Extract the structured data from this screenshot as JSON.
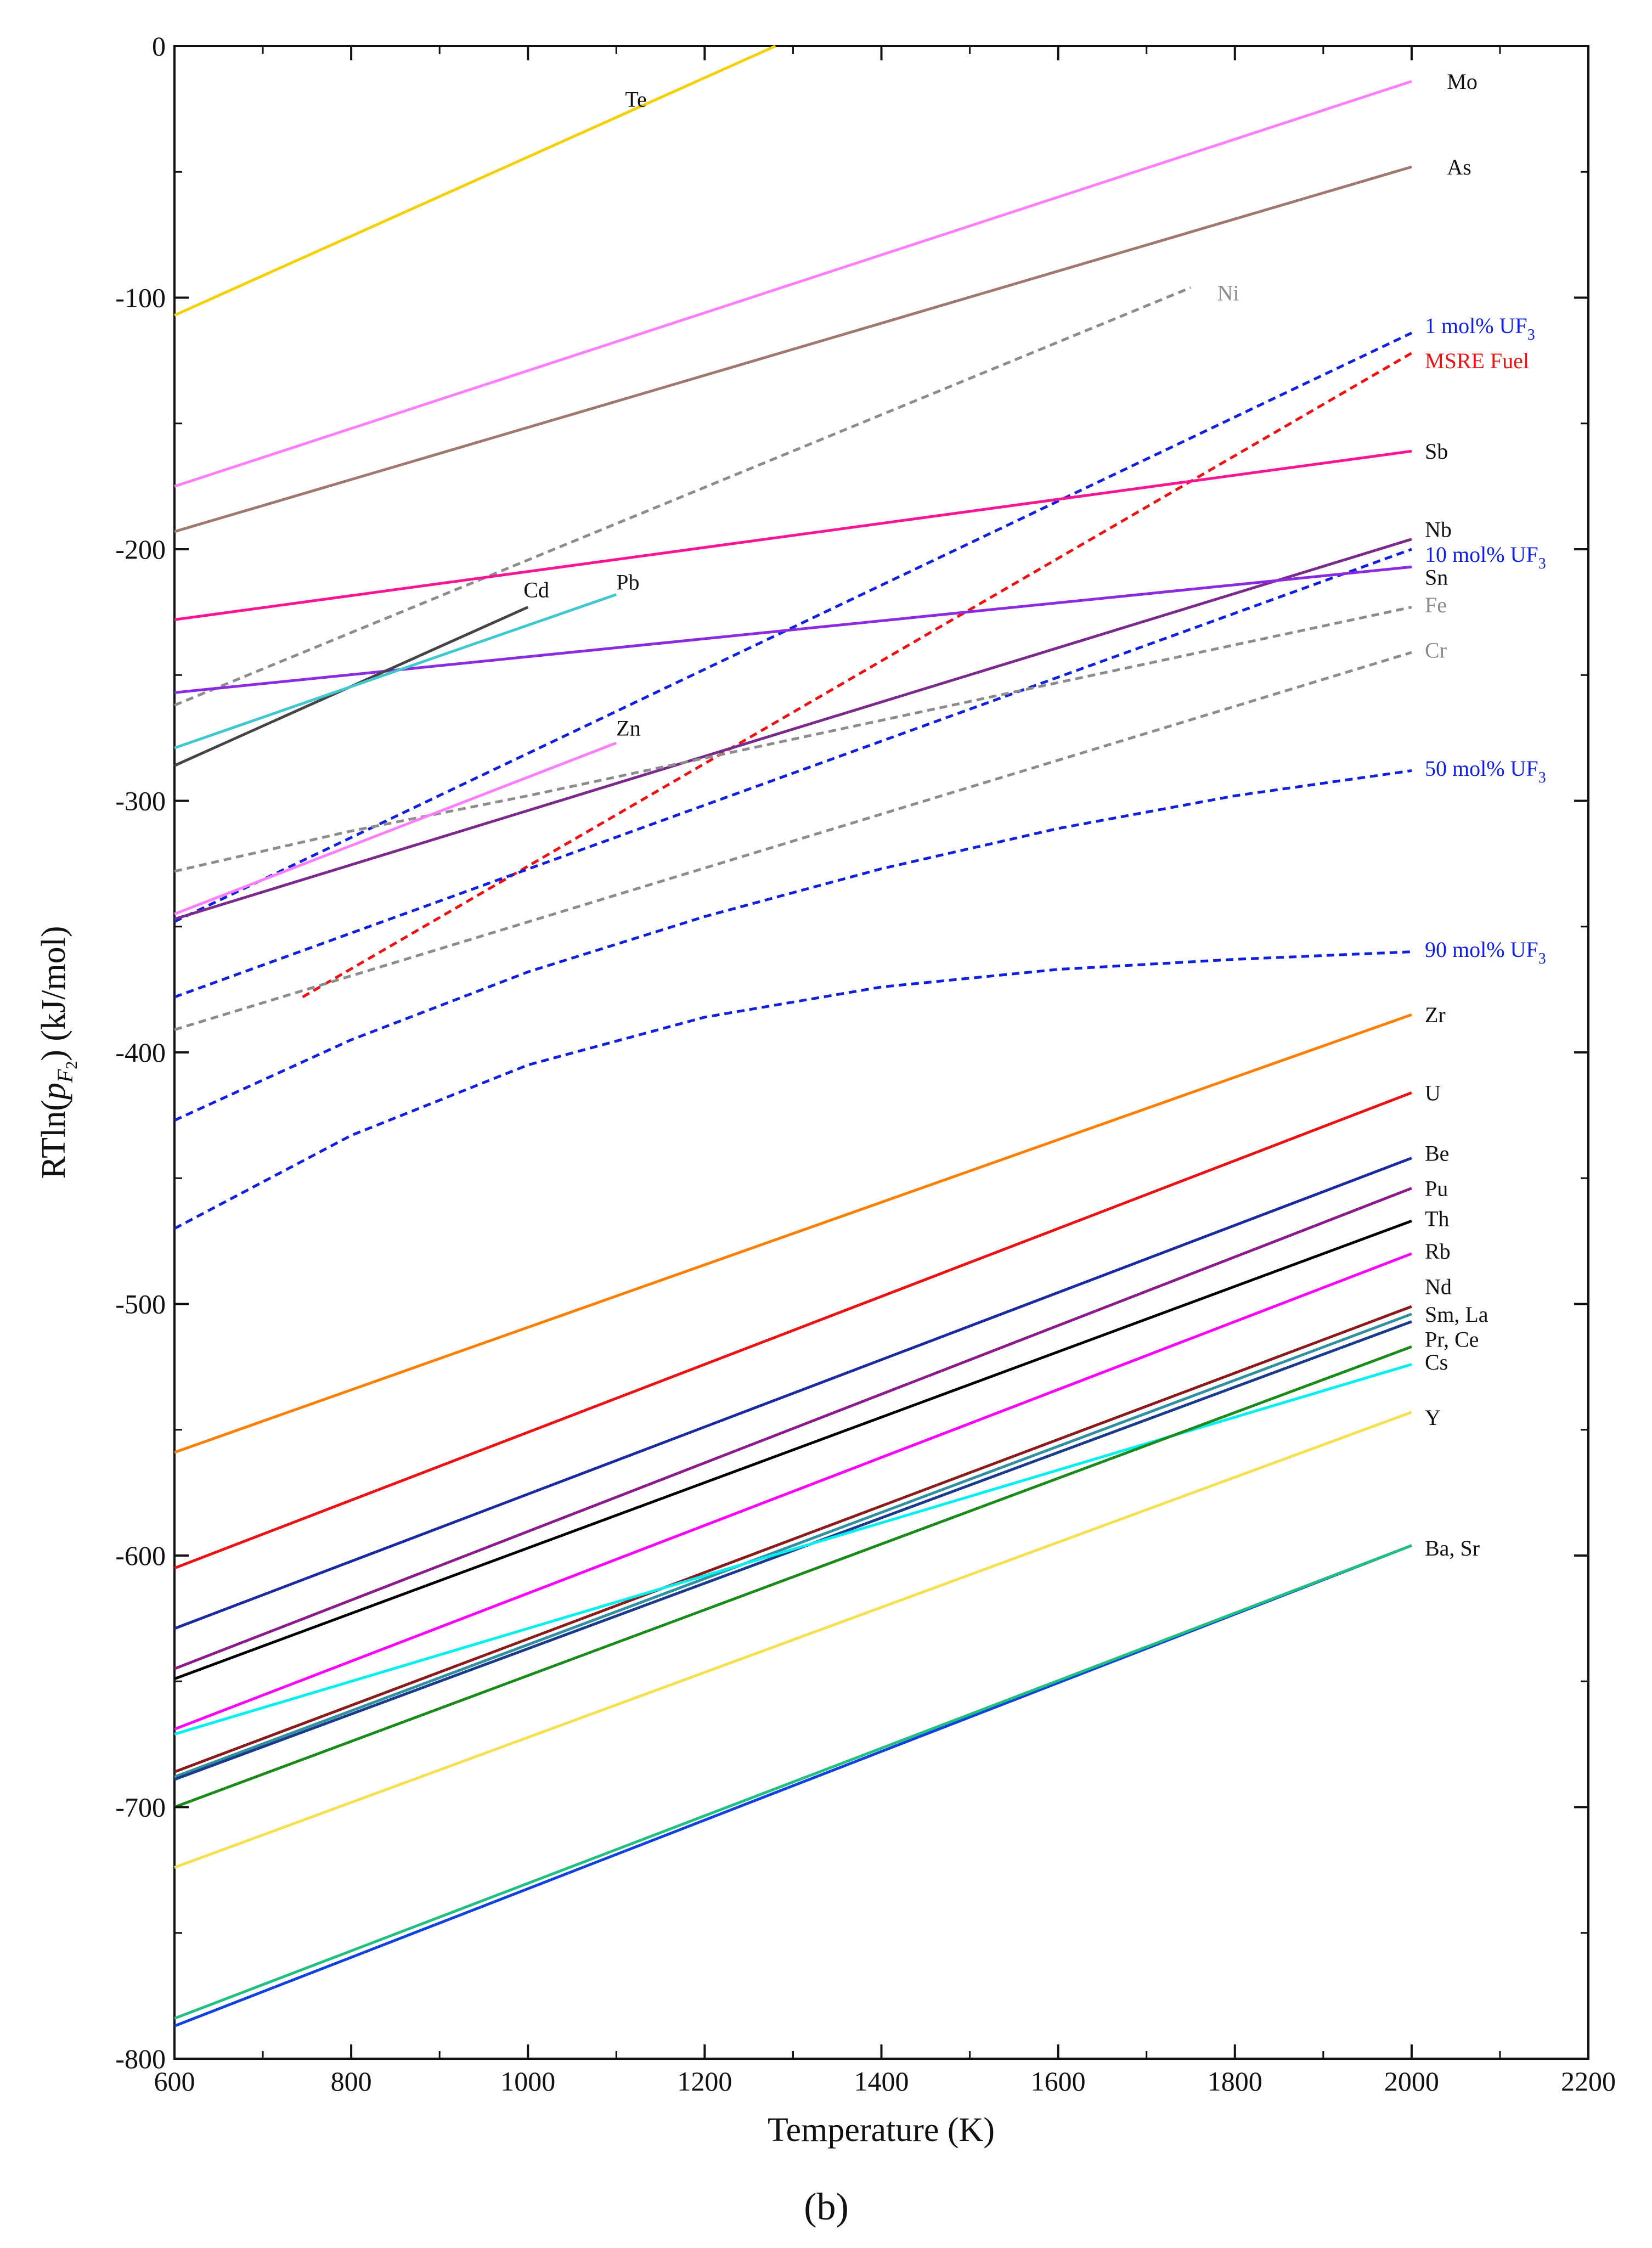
{
  "chart_data": {
    "type": "line",
    "title": "",
    "panel_label": "(b)",
    "xlabel": "Temperature (K)",
    "ylabel": "RTln(p_F2) (kJ/mol)",
    "xlim": [
      600,
      2200
    ],
    "ylim": [
      -800,
      0
    ],
    "xticks": [
      600,
      800,
      1000,
      1200,
      1400,
      1600,
      1800,
      2000,
      2200
    ],
    "yticks": [
      0,
      -100,
      -200,
      -300,
      -400,
      -500,
      -600,
      -700,
      -800
    ],
    "grid": false,
    "series": [
      {
        "name": "Te",
        "label": "Te",
        "color": "#f5d000",
        "dash": false,
        "x": [
          600,
          1280
        ],
        "y": [
          -107,
          0
        ]
      },
      {
        "name": "Mo",
        "label": "Mo",
        "color": "#ff7fff",
        "dash": false,
        "x": [
          600,
          2000
        ],
        "y": [
          -175,
          -14
        ]
      },
      {
        "name": "As",
        "label": "As",
        "color": "#a07870",
        "dash": false,
        "x": [
          600,
          2000
        ],
        "y": [
          -193,
          -48
        ]
      },
      {
        "name": "Ni",
        "label": "Ni",
        "color": "#8c8c8c",
        "dash": true,
        "x": [
          600,
          1750
        ],
        "y": [
          -262,
          -96
        ]
      },
      {
        "name": "1 mol% UF3",
        "label": "1 mol% UF",
        "sub": "3",
        "color": "#1020e0",
        "dash": true,
        "x": [
          600,
          2000
        ],
        "y": [
          -348,
          -114
        ]
      },
      {
        "name": "MSRE Fuel",
        "label": "MSRE Fuel",
        "color": "#ee1111",
        "dash": true,
        "x": [
          745,
          2000
        ],
        "y": [
          -378,
          -122
        ]
      },
      {
        "name": "Sb",
        "label": "Sb",
        "color": "#ff1493",
        "dash": false,
        "x": [
          600,
          2000
        ],
        "y": [
          -228,
          -161
        ]
      },
      {
        "name": "Nb",
        "label": "Nb",
        "color": "#7b2a8c",
        "dash": false,
        "x": [
          600,
          2000
        ],
        "y": [
          -347,
          -196
        ]
      },
      {
        "name": "10 mol% UF3",
        "label": "10 mol% UF",
        "sub": "3",
        "color": "#1020e0",
        "dash": true,
        "x": [
          600,
          2000
        ],
        "y": [
          -378,
          -200
        ]
      },
      {
        "name": "Sn",
        "label": "Sn",
        "color": "#8a2be2",
        "dash": false,
        "x": [
          600,
          2000
        ],
        "y": [
          -257,
          -207
        ]
      },
      {
        "name": "Fe",
        "label": "Fe",
        "color": "#8c8c8c",
        "dash": true,
        "x": [
          600,
          800,
          1000,
          1200,
          1400,
          1600,
          1800,
          2000
        ],
        "y": [
          -328,
          -312,
          -298,
          -283,
          -268,
          -253,
          -238,
          -223
        ]
      },
      {
        "name": "Cr",
        "label": "Cr",
        "color": "#8c8c8c",
        "dash": true,
        "x": [
          600,
          2000
        ],
        "y": [
          -391,
          -241
        ]
      },
      {
        "name": "Cd",
        "label": "Cd",
        "color": "#444444",
        "dash": false,
        "x": [
          600,
          1000
        ],
        "y": [
          -286,
          -223
        ]
      },
      {
        "name": "Pb",
        "label": "Pb",
        "color": "#40c8d0",
        "dash": false,
        "x": [
          600,
          1100
        ],
        "y": [
          -279,
          -218
        ]
      },
      {
        "name": "Zn",
        "label": "Zn",
        "color": "#ff7fff",
        "dash": false,
        "x": [
          600,
          1100
        ],
        "y": [
          -345,
          -277
        ]
      },
      {
        "name": "50 mol% UF3",
        "label": "50 mol% UF",
        "sub": "3",
        "color": "#1020e0",
        "dash": true,
        "x": [
          600,
          800,
          1000,
          1200,
          1400,
          1600,
          1800,
          2000
        ],
        "y": [
          -427,
          -395,
          -368,
          -346,
          -327,
          -311,
          -298,
          -288
        ]
      },
      {
        "name": "90 mol% UF3",
        "label": "90 mol% UF",
        "sub": "3",
        "color": "#1020e0",
        "dash": true,
        "x": [
          600,
          800,
          1000,
          1200,
          1400,
          1600,
          1800,
          2000
        ],
        "y": [
          -470,
          -433,
          -405,
          -386,
          -374,
          -367,
          -363,
          -360
        ]
      },
      {
        "name": "Zr",
        "label": "Zr",
        "color": "#ff8000",
        "dash": false,
        "x": [
          600,
          2000
        ],
        "y": [
          -559,
          -385
        ]
      },
      {
        "name": "U",
        "label": "U",
        "color": "#ee1111",
        "dash": false,
        "x": [
          600,
          2000
        ],
        "y": [
          -605,
          -416
        ]
      },
      {
        "name": "Be",
        "label": "Be",
        "color": "#1a2aa0",
        "dash": false,
        "x": [
          600,
          2000
        ],
        "y": [
          -629,
          -442
        ]
      },
      {
        "name": "Pu",
        "label": "Pu",
        "color": "#8b1a8b",
        "dash": false,
        "x": [
          600,
          2000
        ],
        "y": [
          -645,
          -454
        ]
      },
      {
        "name": "Th",
        "label": "Th",
        "color": "#000000",
        "dash": false,
        "x": [
          600,
          2000
        ],
        "y": [
          -649,
          -467
        ]
      },
      {
        "name": "Rb",
        "label": "Rb",
        "color": "#ff00ff",
        "dash": false,
        "x": [
          600,
          2000
        ],
        "y": [
          -669,
          -480
        ]
      },
      {
        "name": "Nd",
        "label": "Nd",
        "color": "#8b1a1a",
        "dash": false,
        "x": [
          600,
          2000
        ],
        "y": [
          -686,
          -501
        ]
      },
      {
        "name": "Sm, La",
        "label": "Sm, La",
        "color": "#3090a0",
        "dash": false,
        "x": [
          600,
          2000
        ],
        "y": [
          -688,
          -504
        ]
      },
      {
        "name": "Pr, Ce",
        "label": "Pr, Ce",
        "color": "#1a3a8c",
        "dash": false,
        "x": [
          600,
          2000
        ],
        "y": [
          -689,
          -507
        ]
      },
      {
        "name": "Cs",
        "label": "Cs",
        "color": "#00f0f0",
        "dash": false,
        "x": [
          600,
          2000
        ],
        "y": [
          -671,
          -524
        ]
      },
      {
        "name": "Green",
        "label": "",
        "color": "#1a8a1a",
        "dash": false,
        "x": [
          600,
          2000
        ],
        "y": [
          -700,
          -517
        ]
      },
      {
        "name": "Y",
        "label": "Y",
        "color": "#f5e050",
        "dash": false,
        "x": [
          600,
          2000
        ],
        "y": [
          -724,
          -543
        ]
      },
      {
        "name": "Ba, Sr",
        "label": "Ba, Sr",
        "color": "#1040e0",
        "dash": false,
        "x": [
          600,
          2000
        ],
        "y": [
          -787,
          -596
        ]
      },
      {
        "name": "Ba, Sr (green)",
        "label": "",
        "color": "#20c080",
        "dash": false,
        "x": [
          600,
          2000
        ],
        "y": [
          -784,
          -596
        ]
      }
    ],
    "annotations": [
      {
        "text": "Te",
        "x": 1110,
        "y": -21,
        "color": "#111111"
      },
      {
        "text": "Mo",
        "x": 2040,
        "y": -14,
        "color": "#111111"
      },
      {
        "text": "As",
        "x": 2040,
        "y": -48,
        "color": "#111111"
      },
      {
        "text": "Ni",
        "x": 1780,
        "y": -98,
        "color": "#8c8c8c"
      },
      {
        "text": "1 mol% UF",
        "sub": "3",
        "x": 2015,
        "y": -111,
        "color": "#1020e0"
      },
      {
        "text": "MSRE Fuel",
        "x": 2015,
        "y": -125,
        "color": "#ee1111"
      },
      {
        "text": "Sb",
        "x": 2015,
        "y": -161,
        "color": "#111111"
      },
      {
        "text": "Nb",
        "x": 2015,
        "y": -192,
        "color": "#111111"
      },
      {
        "text": "10 mol% UF",
        "sub": "3",
        "x": 2015,
        "y": -202,
        "color": "#1020e0"
      },
      {
        "text": "Sn",
        "x": 2015,
        "y": -211,
        "color": "#111111"
      },
      {
        "text": "Fe",
        "x": 2015,
        "y": -222,
        "color": "#8c8c8c"
      },
      {
        "text": "Cr",
        "x": 2015,
        "y": -240,
        "color": "#8c8c8c"
      },
      {
        "text": "Cd",
        "x": 995,
        "y": -216,
        "color": "#111111"
      },
      {
        "text": "Pb",
        "x": 1100,
        "y": -213,
        "color": "#111111"
      },
      {
        "text": "Zn",
        "x": 1100,
        "y": -271,
        "color": "#111111"
      },
      {
        "text": "50 mol% UF",
        "sub": "3",
        "x": 2015,
        "y": -287,
        "color": "#1020e0"
      },
      {
        "text": "90 mol% UF",
        "sub": "3",
        "x": 2015,
        "y": -359,
        "color": "#1020e0"
      },
      {
        "text": "Zr",
        "x": 2015,
        "y": -385,
        "color": "#111111"
      },
      {
        "text": "U",
        "x": 2015,
        "y": -416,
        "color": "#111111"
      },
      {
        "text": "Be",
        "x": 2015,
        "y": -440,
        "color": "#111111"
      },
      {
        "text": "Pu",
        "x": 2015,
        "y": -454,
        "color": "#111111"
      },
      {
        "text": "Th",
        "x": 2015,
        "y": -466,
        "color": "#111111"
      },
      {
        "text": "Rb",
        "x": 2015,
        "y": -479,
        "color": "#111111"
      },
      {
        "text": "Nd",
        "x": 2015,
        "y": -493,
        "color": "#111111"
      },
      {
        "text": "Sm, La",
        "x": 2015,
        "y": -504,
        "color": "#111111"
      },
      {
        "text": "Pr, Ce",
        "x": 2015,
        "y": -514,
        "color": "#111111"
      },
      {
        "text": "Cs",
        "x": 2015,
        "y": -523,
        "color": "#111111"
      },
      {
        "text": "Y",
        "x": 2015,
        "y": -545,
        "color": "#111111"
      },
      {
        "text": "Ba, Sr",
        "x": 2015,
        "y": -597,
        "color": "#111111"
      }
    ]
  }
}
